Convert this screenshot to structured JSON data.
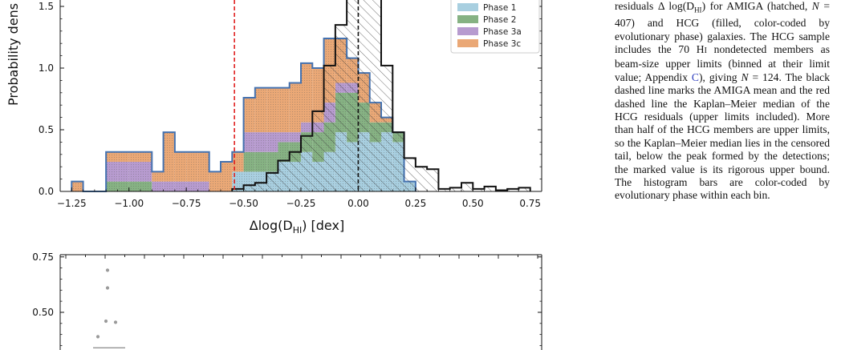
{
  "figure": {
    "ylabel_visible": "Probability dens",
    "xlabel": "Δlog(D_HI) [dex]",
    "xlabel_main": "Δlog(D",
    "xlabel_sub": "HI",
    "xlabel_tail": ") [dex]",
    "legend": [
      "Phase 1",
      "Phase 2",
      "Phase 3a",
      "Phase 3c"
    ],
    "caption": "residuals Δ log(D_HI) for AMIGA (hatched, N = 407) and HCG (filled, color-coded by evolutionary phase) galaxies. The HCG sample includes the 70 HI nondetected members as beam-size upper limits (binned at their limit value; Appendix C), giving N = 124. The black dashed line marks the AMIGA mean and the red dashed line the Kaplan–Meier median of the HCG residuals (upper limits included). More than half of the HCG members are upper limits, so the Kaplan–Meier median lies in the censored tail, below the peak formed by the detections; the marked value is its rigorous upper bound. The histogram bars are color-coded by evolutionary phase within each bin.",
    "caption_parts": {
      "p1": "residuals Δ log(D",
      "p1_sub": "HI",
      "p2": ") for AMIGA (hatched, ",
      "p2_n": "N",
      "p2b": " = 407) and HCG (filled, color-coded by evolutionary phase) galaxies. The HCG sample includes the 70 H",
      "p2_small": "I",
      "p3": " nondetected members as beam-size upper limits (binned at their limit value; Appendix ",
      "ref": "C",
      "p4": "), giving ",
      "p4_n": "N",
      "p5": " = 124. The black dashed line marks the AMIGA mean and the red dashed line the Kaplan–Meier median of the HCG residuals (upper limits included). More than half of the HCG members are upper limits, so the Kaplan–Meier median lies in the censored tail, below the peak formed by the detections; the marked value is its rigorous upper bound. The histogram bars are color-coded by evolutionary phase within each bin."
    }
  },
  "chart_data": [
    {
      "type": "bar",
      "xlabel": "Δlog(D_HI) [dex]",
      "ylabel": "Probability dens",
      "xlim": [
        -1.3,
        0.8
      ],
      "ylim": [
        0,
        1.78
      ],
      "xticks": [
        -1.25,
        -1.0,
        -0.75,
        -0.5,
        -0.25,
        0.0,
        0.25,
        0.5,
        0.75
      ],
      "xtick_labels": [
        "−1.25",
        "−1.00",
        "−0.75",
        "−0.50",
        "−0.25",
        "0.00",
        "0.25",
        "0.50",
        "0.75"
      ],
      "yticks": [
        0.0,
        0.5,
        1.0,
        1.5
      ],
      "ytick_labels": [
        "0.0",
        "0.5",
        "1.0",
        "1.5"
      ],
      "bin_width": 0.05,
      "hcg_bin_starts": [
        -1.25,
        -1.2,
        -1.15,
        -1.1,
        -1.05,
        -1.0,
        -0.95,
        -0.9,
        -0.85,
        -0.8,
        -0.75,
        -0.7,
        -0.65,
        -0.6,
        -0.55,
        -0.5,
        -0.45,
        -0.4,
        -0.35,
        -0.3,
        -0.25,
        -0.2,
        -0.15,
        -0.1,
        -0.05,
        0.0,
        0.05,
        0.1,
        0.15,
        0.2
      ],
      "series": [
        {
          "name": "Phase 1",
          "color": "#a8cfe0",
          "values": [
            0,
            0,
            0,
            0,
            0,
            0,
            0,
            0,
            0,
            0,
            0,
            0,
            0,
            0,
            0.16,
            0.16,
            0.16,
            0.16,
            0.24,
            0.24,
            0.32,
            0.24,
            0.32,
            0.48,
            0.4,
            0.48,
            0.4,
            0.48,
            0.4,
            0.08
          ]
        },
        {
          "name": "Phase 2",
          "color": "#86b283",
          "values": [
            0,
            0,
            0,
            0.08,
            0.08,
            0.08,
            0.08,
            0,
            0,
            0,
            0,
            0,
            0,
            0,
            0,
            0.16,
            0.16,
            0.16,
            0.16,
            0.16,
            0.16,
            0.24,
            0.24,
            0.32,
            0.4,
            0.24,
            0.16,
            0.08,
            0.08,
            0
          ]
        },
        {
          "name": "Phase 3a",
          "color": "#b79bcf",
          "values": [
            0,
            0,
            0,
            0.16,
            0.16,
            0.16,
            0.16,
            0.08,
            0.08,
            0.08,
            0.08,
            0.08,
            0,
            0,
            0,
            0.16,
            0.16,
            0.16,
            0.08,
            0.08,
            0.08,
            0.08,
            0.16,
            0.08,
            0.08,
            0,
            0,
            0,
            0,
            0
          ]
        },
        {
          "name": "Phase 3c",
          "color": "#eaa876",
          "values": [
            0.08,
            0,
            0,
            0.08,
            0.08,
            0.08,
            0.08,
            0.08,
            0.4,
            0.24,
            0.24,
            0.24,
            0.16,
            0.24,
            0.16,
            0.28,
            0.36,
            0.36,
            0.36,
            0.4,
            0.48,
            0.44,
            0.52,
            0.36,
            0.2,
            0.24,
            0.16,
            0.04,
            0,
            0
          ]
        }
      ],
      "amiga_hist": {
        "name": "AMIGA",
        "x": [
          -0.55,
          -0.5,
          -0.45,
          -0.4,
          -0.35,
          -0.3,
          -0.25,
          -0.2,
          -0.15,
          -0.1,
          -0.05,
          0.0,
          0.05,
          0.1,
          0.15,
          0.2,
          0.25,
          0.3,
          0.35,
          0.4,
          0.45,
          0.5,
          0.55,
          0.6,
          0.65,
          0.7
        ],
        "values": [
          0.02,
          0.05,
          0.07,
          0.15,
          0.25,
          0.32,
          0.45,
          0.65,
          1.02,
          1.35,
          1.65,
          1.78,
          1.56,
          1.02,
          0.48,
          0.27,
          0.2,
          0.18,
          0.02,
          0.03,
          0.07,
          0.02,
          0.04,
          0.01,
          0.02,
          0.03
        ]
      },
      "hcg_km_median": -0.54,
      "amiga_mean": 0.0,
      "legend_position": "top-right"
    },
    {
      "type": "scatter",
      "ylim": [
        0.33,
        0.76
      ],
      "yticks": [
        0.5,
        0.75
      ],
      "ytick_labels": [
        "0.50",
        "0.75"
      ],
      "points": [
        {
          "x": 0,
          "y": 0.69
        },
        {
          "x": 0,
          "y": 0.61
        },
        {
          "x": -0.06,
          "y": 0.39
        },
        {
          "x": -0.01,
          "y": 0.46
        },
        {
          "x": 0.05,
          "y": 0.455
        }
      ],
      "median": 0.34
    }
  ]
}
